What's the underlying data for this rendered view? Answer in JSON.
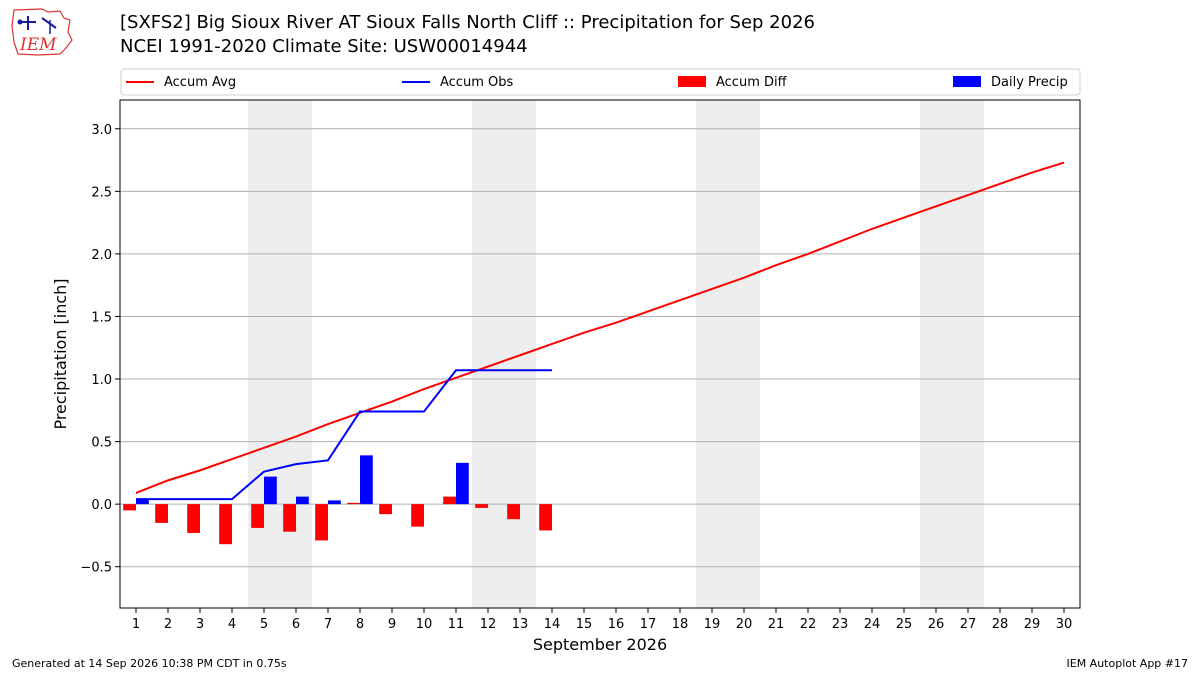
{
  "header": {
    "logo_text": "IEM",
    "title_line1": "[SXFS2] Big Sioux River  AT Sioux Falls North Cliff :: Precipitation for Sep 2026",
    "title_line2": "NCEI 1991-2020 Climate Site: USW00014944"
  },
  "footer": {
    "generated": "Generated at 14 Sep 2026 10:38 PM CDT in 0.75s",
    "app": "IEM Autoplot App #17"
  },
  "colors": {
    "accum_avg": "#ff0000",
    "accum_obs": "#0000ff",
    "accum_diff": "#ff0000",
    "daily_precip": "#0000ff",
    "weekend_shade": "#eeeeee",
    "grid": "#b0b0b0"
  },
  "chart_data": {
    "type": "bar",
    "xlabel": "September 2026",
    "ylabel": "Precipitation [inch]",
    "xlim": [
      0.5,
      30.5
    ],
    "ylim": [
      -0.83,
      3.23
    ],
    "yticks": [
      -0.5,
      0.0,
      0.5,
      1.0,
      1.5,
      2.0,
      2.5,
      3.0
    ],
    "ytick_labels": [
      "−0.5",
      "0.0",
      "0.5",
      "1.0",
      "1.5",
      "2.0",
      "2.5",
      "3.0"
    ],
    "grid": true,
    "legend_position": "top",
    "legend": [
      "Accum Avg",
      "Accum Obs",
      "Accum Diff",
      "Daily Precip"
    ],
    "weekend_shading": [
      [
        4.5,
        6.5
      ],
      [
        11.5,
        13.5
      ],
      [
        18.5,
        20.5
      ],
      [
        25.5,
        27.5
      ]
    ],
    "days": [
      1,
      2,
      3,
      4,
      5,
      6,
      7,
      8,
      9,
      10,
      11,
      12,
      13,
      14,
      15,
      16,
      17,
      18,
      19,
      20,
      21,
      22,
      23,
      24,
      25,
      26,
      27,
      28,
      29,
      30
    ],
    "series": [
      {
        "name": "Accum Avg",
        "kind": "line",
        "values": [
          0.09,
          0.19,
          0.27,
          0.36,
          0.45,
          0.54,
          0.64,
          0.73,
          0.82,
          0.92,
          1.01,
          1.1,
          1.19,
          1.28,
          1.37,
          1.45,
          1.54,
          1.63,
          1.72,
          1.81,
          1.91,
          2.0,
          2.1,
          2.2,
          2.29,
          2.38,
          2.47,
          2.56,
          2.65,
          2.73
        ]
      },
      {
        "name": "Accum Obs",
        "kind": "line",
        "values": [
          0.04,
          0.04,
          0.04,
          0.04,
          0.26,
          0.32,
          0.35,
          0.74,
          0.74,
          0.74,
          1.07,
          1.07,
          1.07,
          1.07
        ]
      },
      {
        "name": "Accum Diff",
        "kind": "bar",
        "values": [
          -0.05,
          -0.15,
          -0.23,
          -0.32,
          -0.19,
          -0.22,
          -0.29,
          0.01,
          -0.08,
          -0.18,
          0.06,
          -0.03,
          -0.12,
          -0.21
        ]
      },
      {
        "name": "Daily Precip",
        "kind": "bar",
        "values": [
          0.04,
          0.0,
          0.0,
          0.0,
          0.22,
          0.06,
          0.03,
          0.39,
          0.0,
          0.0,
          0.33,
          0.0,
          0.0,
          0.0
        ]
      }
    ]
  }
}
